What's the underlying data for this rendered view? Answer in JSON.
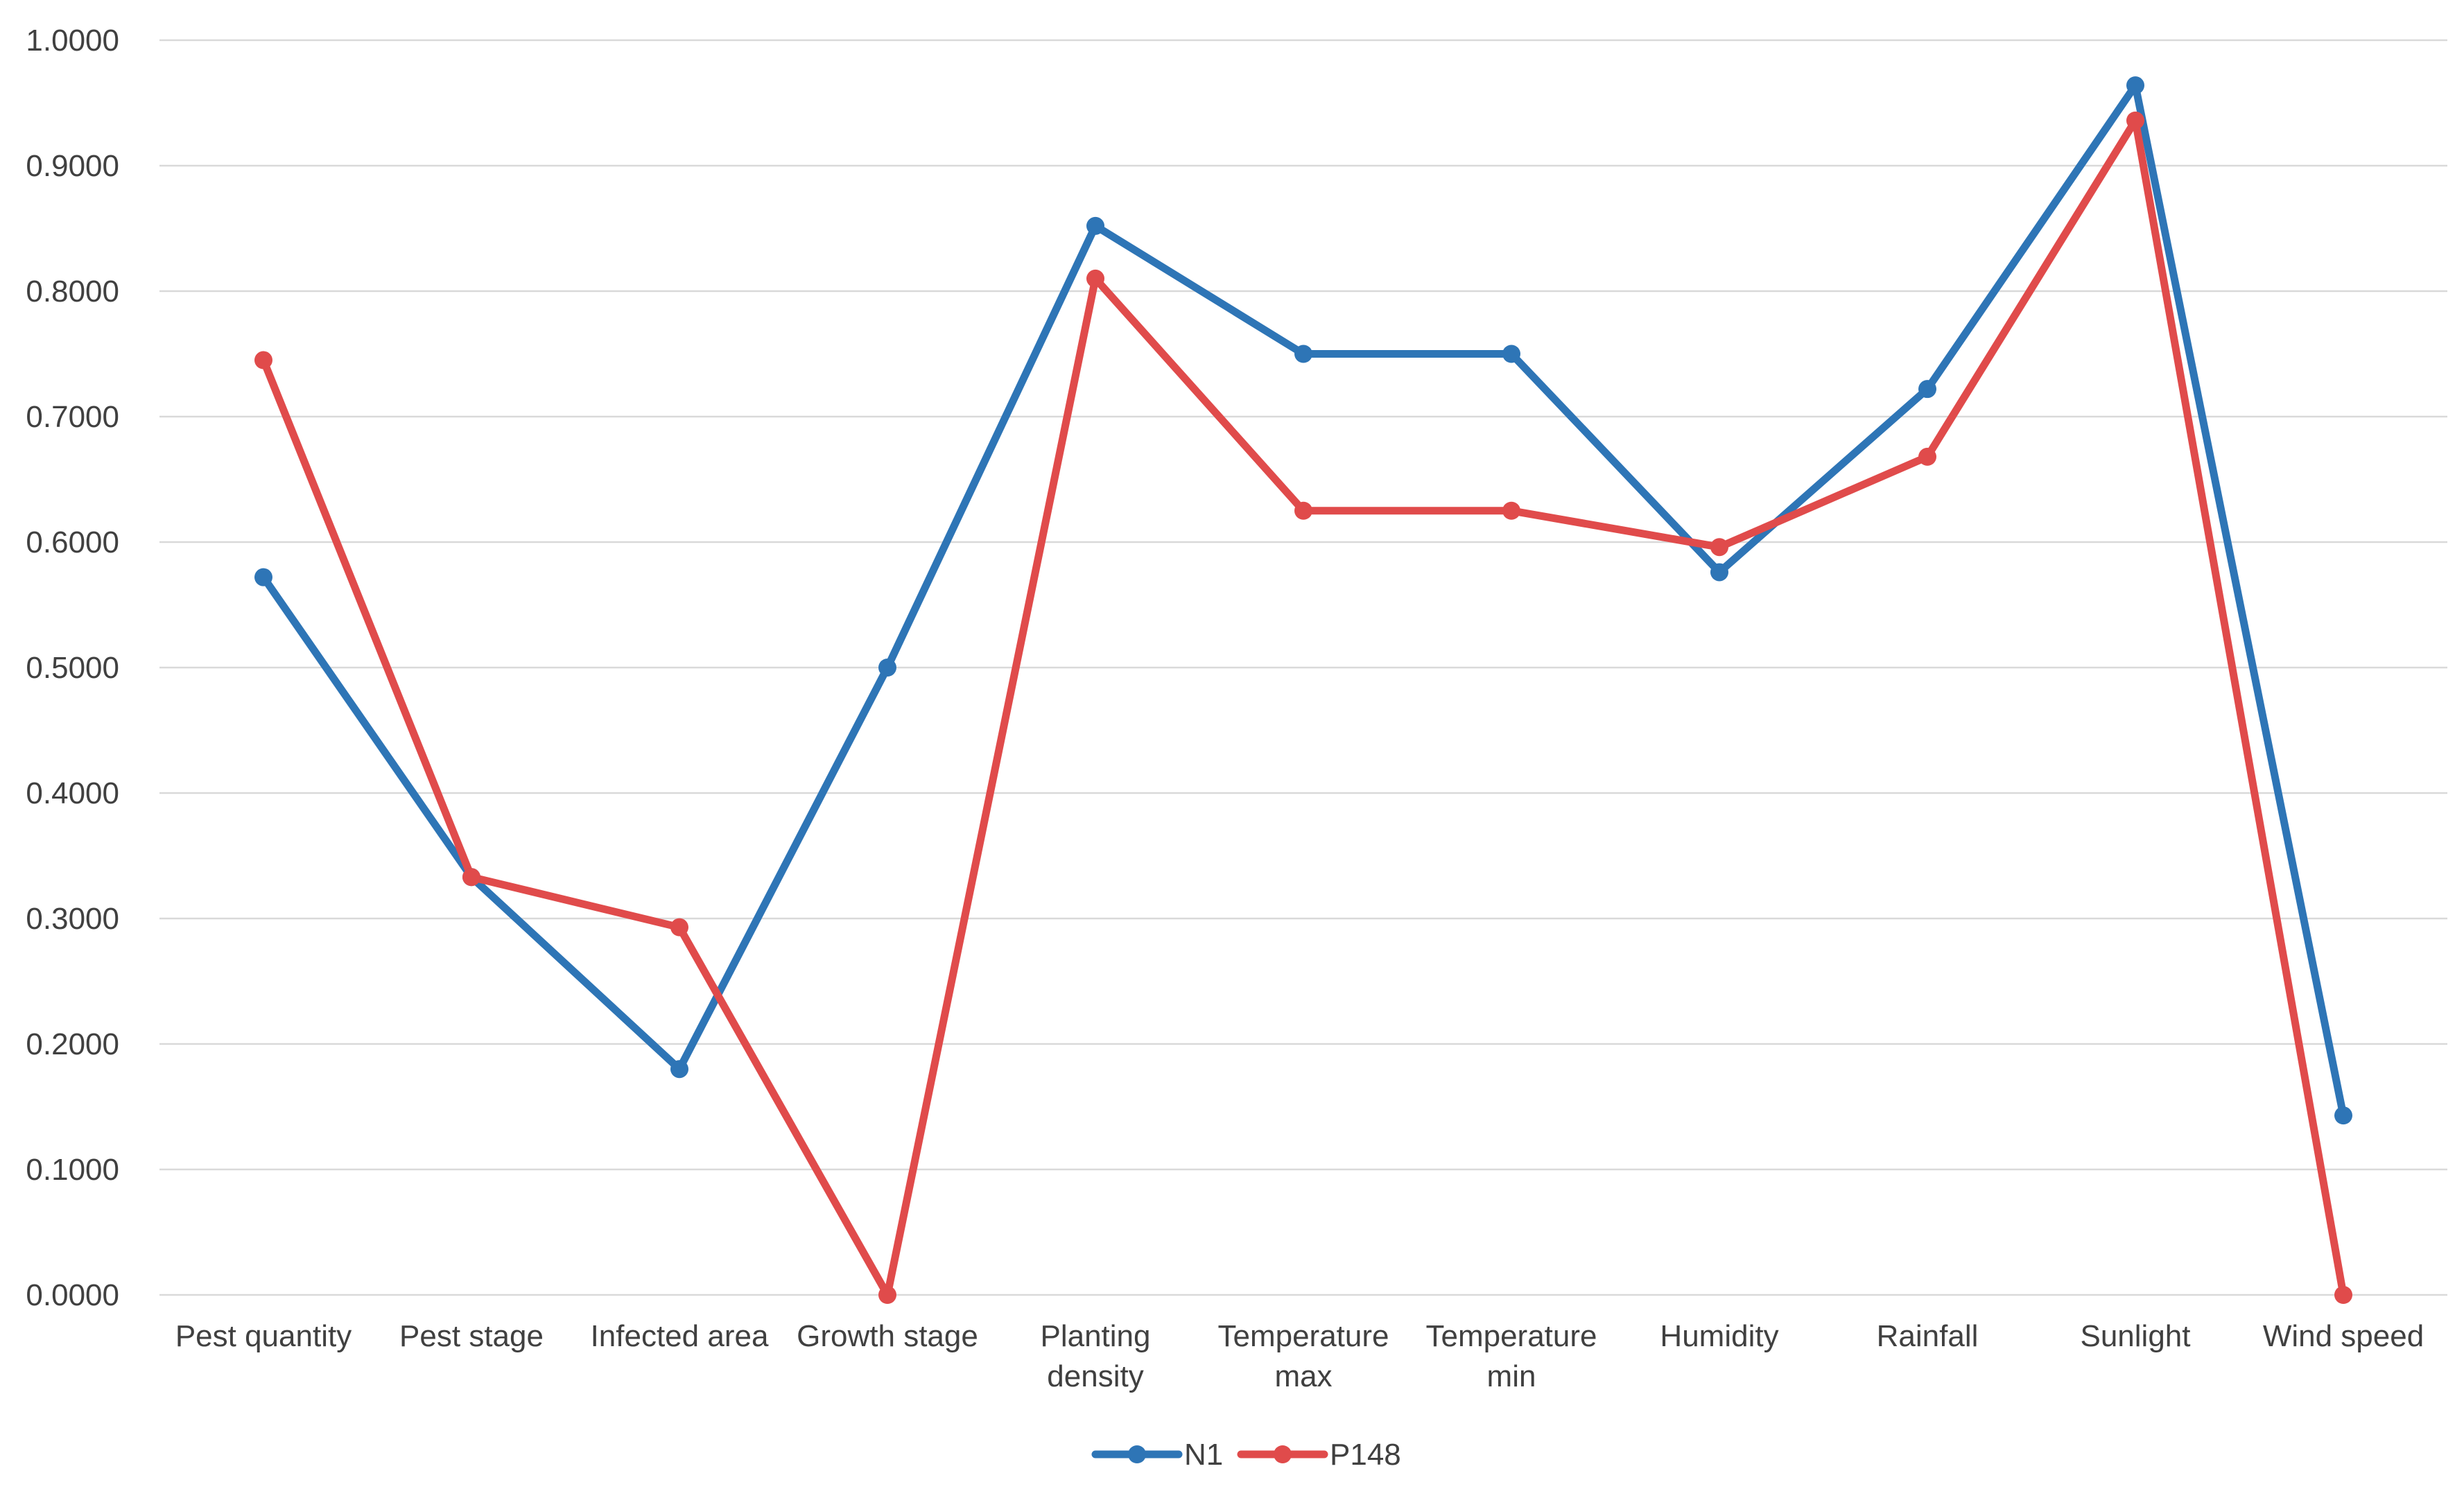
{
  "chart_data": {
    "type": "line",
    "title": "",
    "xlabel": "",
    "ylabel": "",
    "categories": [
      [
        "Pest quantity"
      ],
      [
        "Pest stage"
      ],
      [
        "Infected area"
      ],
      [
        "Growth stage"
      ],
      [
        "Planting",
        "density"
      ],
      [
        "Temperature",
        "max"
      ],
      [
        "Temperature",
        "min"
      ],
      [
        "Humidity"
      ],
      [
        "Rainfall"
      ],
      [
        "Sunlight"
      ],
      [
        "Wind speed"
      ]
    ],
    "ylim": [
      0,
      1
    ],
    "yticks": [
      "0.0000",
      "0.1000",
      "0.2000",
      "0.3000",
      "0.4000",
      "0.5000",
      "0.6000",
      "0.7000",
      "0.8000",
      "0.9000",
      "1.0000"
    ],
    "grid": true,
    "legend_position": "bottom",
    "series": [
      {
        "name": "N1",
        "color": "#2E75B6",
        "values": [
          0.572,
          0.333,
          0.18,
          0.5,
          0.852,
          0.75,
          0.75,
          0.576,
          0.722,
          0.964,
          0.143
        ]
      },
      {
        "name": "P148",
        "color": "#E04B4B",
        "values": [
          0.745,
          0.333,
          0.293,
          0.0,
          0.81,
          0.625,
          0.625,
          0.596,
          0.668,
          0.936,
          0.0
        ]
      }
    ]
  }
}
